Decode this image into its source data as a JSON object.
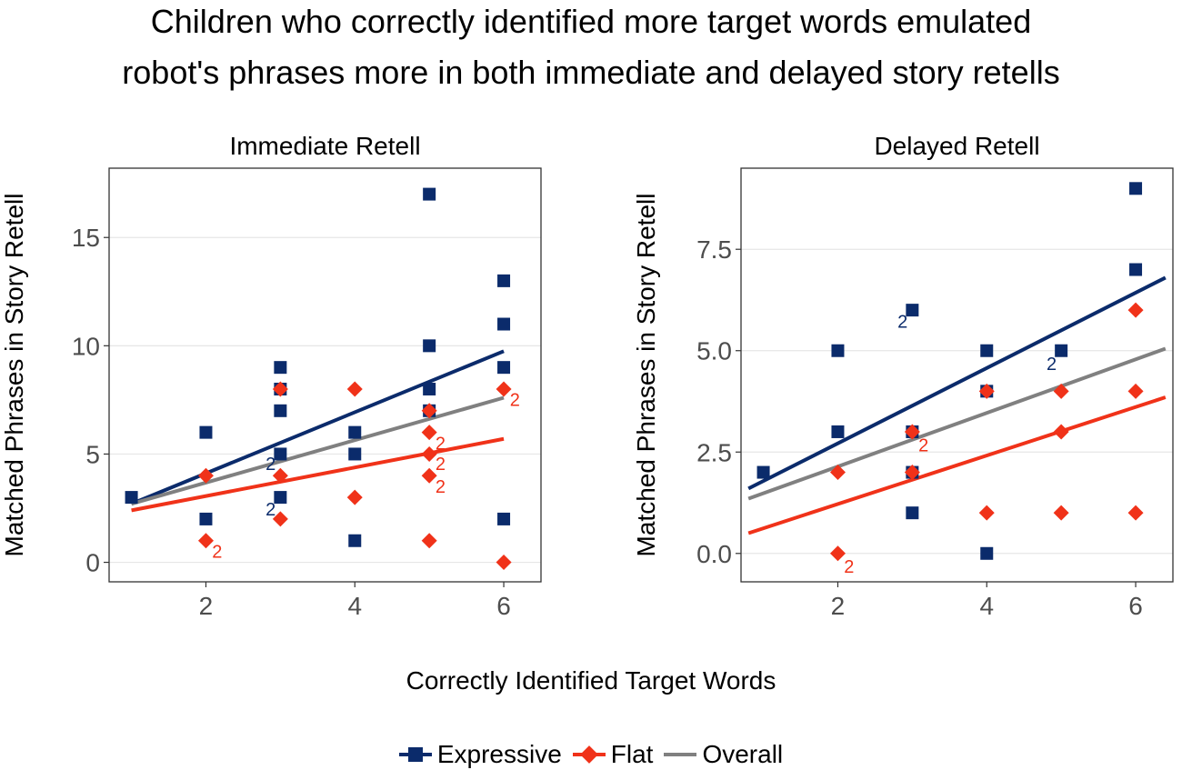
{
  "title": {
    "line1": "Children who correctly identified more target words emulated",
    "line2": "robot's phrases more in both immediate and delayed story retells"
  },
  "xlabel": "Correctly Identified Target Words",
  "colors": {
    "expressive": "#0b2b6b",
    "flat": "#f03219",
    "overall": "#808080"
  },
  "legend": [
    {
      "name": "Expressive",
      "key": "expressive"
    },
    {
      "name": "Flat",
      "key": "flat"
    },
    {
      "name": "Overall",
      "key": "overall"
    }
  ],
  "chart_data": [
    {
      "type": "scatter",
      "title": "Immediate Retell",
      "xlabel": "Correctly Identified Target Words",
      "ylabel": "Matched Phrases in Story Retell",
      "xlim": [
        0.7,
        6.5
      ],
      "ylim": [
        -0.9,
        18.2
      ],
      "xticks": [
        2,
        4,
        6
      ],
      "xtick_labels": [
        "2",
        "4",
        "6"
      ],
      "yticks": [
        0,
        5,
        10,
        15
      ],
      "ytick_labels": [
        "0",
        "5",
        "10",
        "15"
      ],
      "series": [
        {
          "name": "Expressive",
          "marker": "square",
          "points": [
            [
              1,
              3
            ],
            [
              2,
              6
            ],
            [
              2,
              2
            ],
            [
              3,
              9
            ],
            [
              3,
              8
            ],
            [
              3,
              7
            ],
            [
              3,
              5
            ],
            [
              3,
              3
            ],
            [
              4,
              6
            ],
            [
              4,
              5
            ],
            [
              4,
              1
            ],
            [
              5,
              17
            ],
            [
              5,
              10
            ],
            [
              5,
              8
            ],
            [
              5,
              7
            ],
            [
              6,
              13
            ],
            [
              6,
              11
            ],
            [
              6,
              9
            ],
            [
              6,
              2
            ]
          ]
        },
        {
          "name": "Flat",
          "marker": "diamond",
          "points": [
            [
              2,
              4
            ],
            [
              2,
              1
            ],
            [
              3,
              8
            ],
            [
              3,
              4
            ],
            [
              3,
              2
            ],
            [
              4,
              8
            ],
            [
              4,
              3
            ],
            [
              5,
              7
            ],
            [
              5,
              6
            ],
            [
              5,
              5
            ],
            [
              5,
              4
            ],
            [
              5,
              1
            ],
            [
              6,
              8
            ],
            [
              6,
              0
            ]
          ]
        }
      ],
      "fits": [
        {
          "name": "Expressive",
          "x": [
            1,
            6.0
          ],
          "y": [
            2.7,
            9.75
          ]
        },
        {
          "name": "Overall",
          "x": [
            1,
            6.0
          ],
          "y": [
            2.7,
            7.6
          ]
        },
        {
          "name": "Flat",
          "x": [
            1,
            6.0
          ],
          "y": [
            2.4,
            5.7
          ]
        }
      ],
      "annotations": [
        {
          "text": "2",
          "series": "Expressive",
          "x": 2.87,
          "y": 4.6
        },
        {
          "text": "2",
          "series": "Expressive",
          "x": 2.87,
          "y": 2.5
        },
        {
          "text": "2",
          "series": "Flat",
          "x": 2.15,
          "y": 0.55
        },
        {
          "text": "2",
          "series": "Flat",
          "x": 5.15,
          "y": 5.55
        },
        {
          "text": "2",
          "series": "Flat",
          "x": 5.15,
          "y": 4.6
        },
        {
          "text": "2",
          "series": "Flat",
          "x": 5.15,
          "y": 3.55
        },
        {
          "text": "2",
          "series": "Flat",
          "x": 6.15,
          "y": 7.55
        }
      ]
    },
    {
      "type": "scatter",
      "title": "Delayed Retell",
      "xlabel": "Correctly Identified Target Words",
      "ylabel": "Matched Phrases in Story Retell",
      "xlim": [
        0.7,
        6.5
      ],
      "ylim": [
        -0.7,
        9.5
      ],
      "xticks": [
        2,
        4,
        6
      ],
      "xtick_labels": [
        "2",
        "4",
        "6"
      ],
      "yticks": [
        0,
        2.5,
        5,
        7.5
      ],
      "ytick_labels": [
        "0.0",
        "2.5",
        "5.0",
        "7.5"
      ],
      "series": [
        {
          "name": "Expressive",
          "marker": "square",
          "points": [
            [
              1,
              2
            ],
            [
              2,
              5
            ],
            [
              2,
              3
            ],
            [
              3,
              6
            ],
            [
              3,
              3
            ],
            [
              3,
              2
            ],
            [
              3,
              1
            ],
            [
              4,
              5
            ],
            [
              4,
              4
            ],
            [
              4,
              0
            ],
            [
              5,
              5
            ],
            [
              6,
              9
            ],
            [
              6,
              7
            ]
          ]
        },
        {
          "name": "Flat",
          "marker": "diamond",
          "points": [
            [
              2,
              2
            ],
            [
              2,
              0
            ],
            [
              3,
              3
            ],
            [
              3,
              2
            ],
            [
              4,
              4
            ],
            [
              4,
              1
            ],
            [
              5,
              4
            ],
            [
              5,
              3
            ],
            [
              5,
              1
            ],
            [
              6,
              6
            ],
            [
              6,
              4
            ],
            [
              6,
              1
            ]
          ]
        }
      ],
      "fits": [
        {
          "name": "Expressive",
          "x": [
            0.8,
            6.4
          ],
          "y": [
            1.6,
            6.8
          ]
        },
        {
          "name": "Overall",
          "x": [
            0.8,
            6.4
          ],
          "y": [
            1.35,
            5.05
          ]
        },
        {
          "name": "Flat",
          "x": [
            0.8,
            6.4
          ],
          "y": [
            0.5,
            3.85
          ]
        }
      ],
      "annotations": [
        {
          "text": "2",
          "series": "Expressive",
          "x": 2.87,
          "y": 5.75
        },
        {
          "text": "2",
          "series": "Expressive",
          "x": 4.87,
          "y": 4.7
        },
        {
          "text": "2",
          "series": "Flat",
          "x": 3.15,
          "y": 2.7
        },
        {
          "text": "2",
          "series": "Flat",
          "x": 2.15,
          "y": -0.3
        }
      ]
    }
  ]
}
